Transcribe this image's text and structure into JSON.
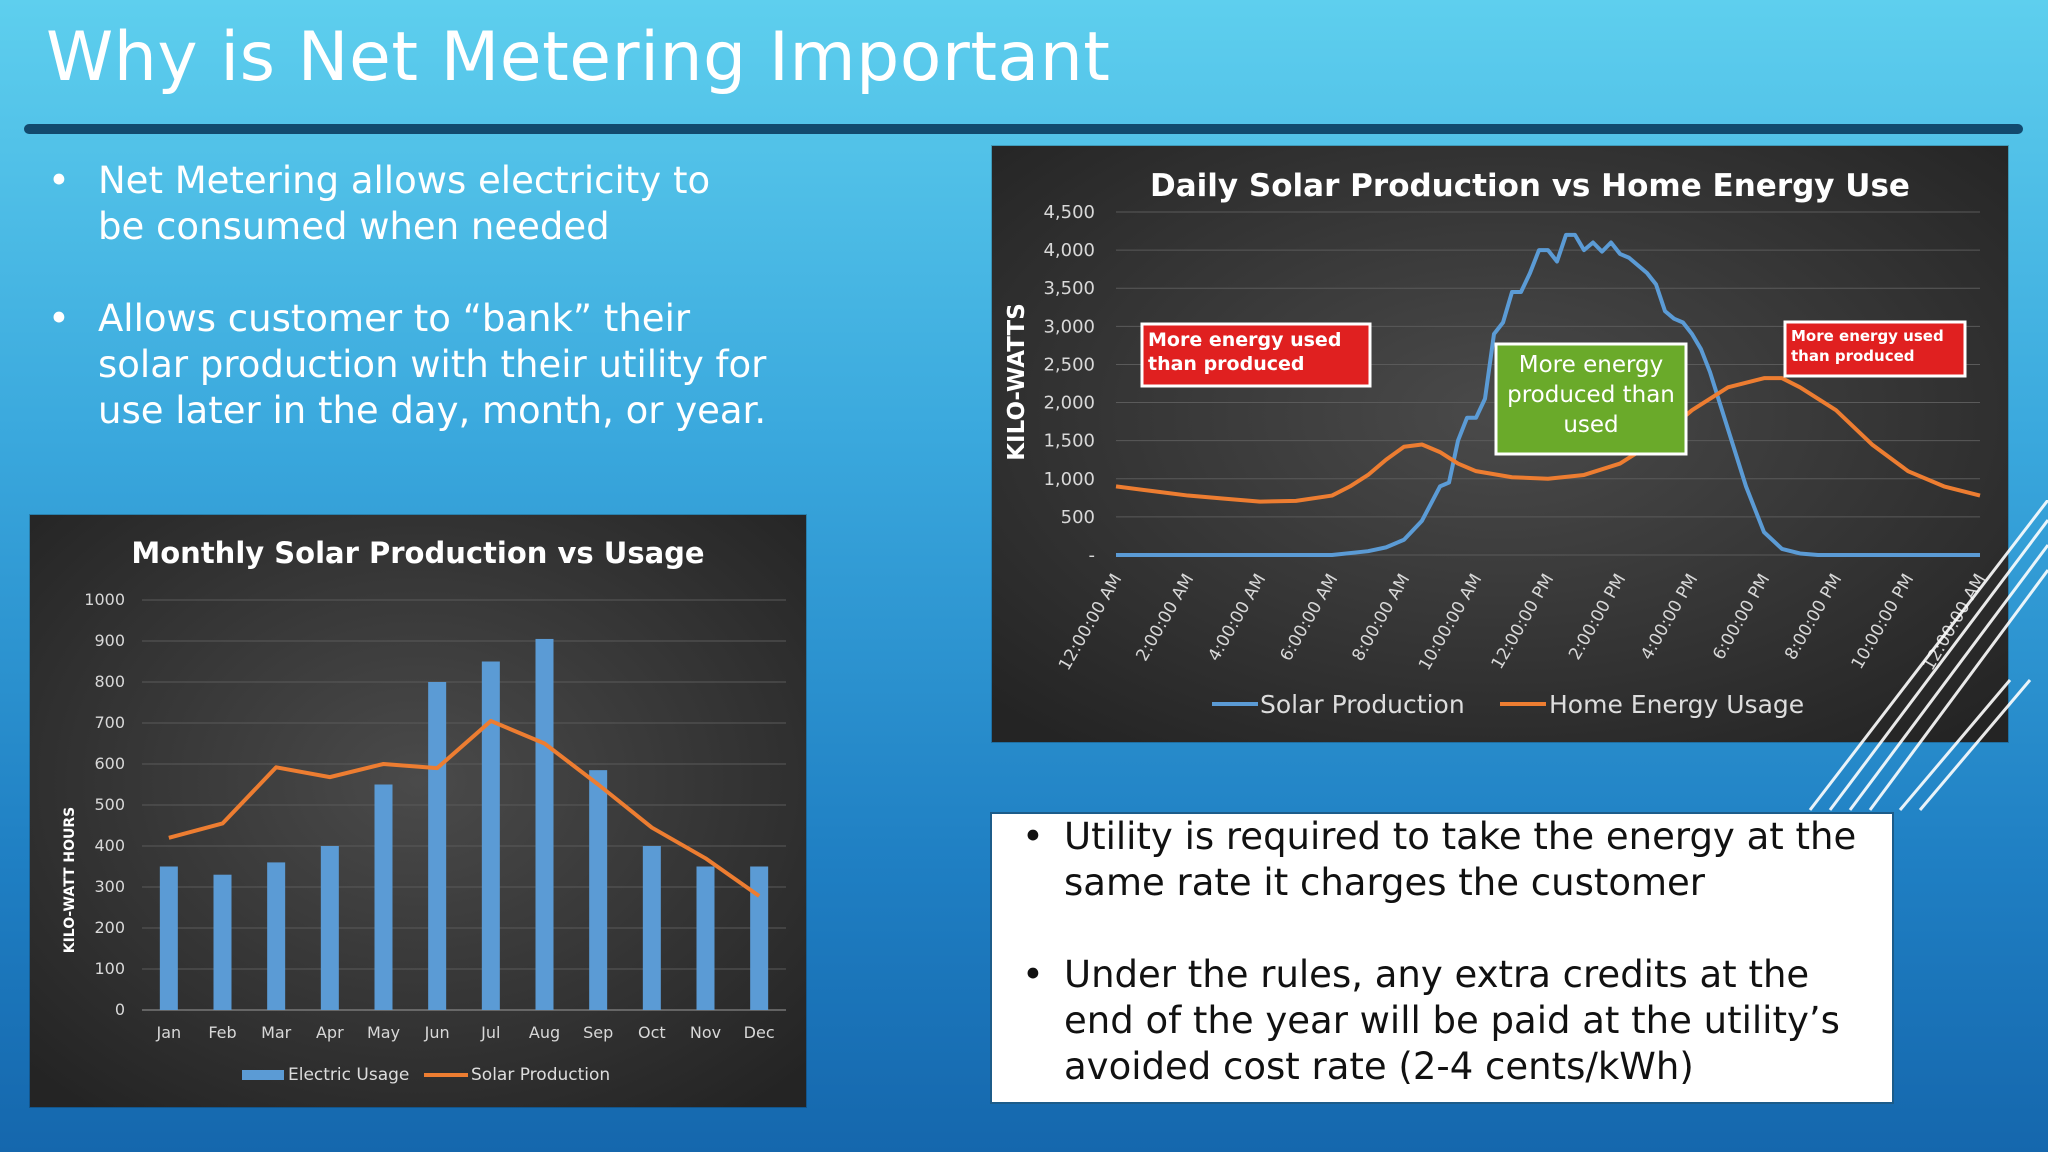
{
  "slide": {
    "title": "Why is Net Metering Important",
    "left_bullets": [
      "Net Metering allows electricity to be consumed when needed",
      "Allows customer to “bank” their solar production with their utility for use later in the day, month, or year."
    ],
    "box_bullets": [
      "Utility is required to take the energy at the same rate it charges the customer",
      "Under the rules, any extra credits at the end of the year will be paid at the utility’s avoided cost rate (2-4 cents/kWh)"
    ],
    "colors": {
      "bar_blue": "#5b9bd5",
      "line_orange": "#ed7d31",
      "annotation_red": "#e02020",
      "annotation_green": "#6aaa2a"
    }
  },
  "chart_data": [
    {
      "type": "bar",
      "title": "Monthly Solar Production vs Usage",
      "ylabel": "KILO-WATT HOURS",
      "xlabel": "",
      "ylim": [
        0,
        1000
      ],
      "yticks": [
        "0",
        "100",
        "200",
        "300",
        "400",
        "500",
        "600",
        "700",
        "800",
        "900",
        "1000"
      ],
      "categories": [
        "Jan",
        "Feb",
        "Mar",
        "Apr",
        "May",
        "Jun",
        "Jul",
        "Aug",
        "Sep",
        "Oct",
        "Nov",
        "Dec"
      ],
      "grid": true,
      "legend": "bottom",
      "series": [
        {
          "name": "Electric Usage",
          "kind": "bar",
          "color": "#5b9bd5",
          "values": [
            350,
            330,
            360,
            400,
            550,
            800,
            850,
            905,
            585,
            400,
            350,
            350
          ]
        },
        {
          "name": "Solar Production",
          "kind": "line",
          "color": "#ed7d31",
          "values": [
            420,
            455,
            592,
            568,
            600,
            590,
            705,
            650,
            550,
            445,
            370,
            278
          ]
        }
      ]
    },
    {
      "type": "line",
      "title": "Daily Solar Production vs Home Energy Use",
      "ylabel": "KILO-WATTS",
      "xlabel": "",
      "ylim": [
        0,
        4500
      ],
      "yticks": [
        "-",
        "500",
        "1,000",
        "1,500",
        "2,000",
        "2,500",
        "3,000",
        "3,500",
        "4,000",
        "4,500"
      ],
      "x_range_hours": [
        0,
        24
      ],
      "xticks": [
        "12:00:00 AM",
        "2:00:00 AM",
        "4:00:00 AM",
        "6:00:00 AM",
        "8:00:00 AM",
        "10:00:00 AM",
        "12:00:00 PM",
        "2:00:00 PM",
        "4:00:00 PM",
        "6:00:00 PM",
        "8:00:00 PM",
        "10:00:00 PM",
        "12:00:00 AM"
      ],
      "grid": true,
      "legend": "bottom",
      "series": [
        {
          "name": "Solar Production",
          "color": "#5b9bd5",
          "x": [
            0,
            6,
            7,
            7.5,
            8,
            8.5,
            9,
            9.25,
            9.5,
            9.75,
            10,
            10.25,
            10.5,
            10.75,
            11,
            11.25,
            11.5,
            11.75,
            12,
            12.25,
            12.5,
            12.75,
            13,
            13.25,
            13.5,
            13.75,
            14,
            14.25,
            14.5,
            14.75,
            15,
            15.25,
            15.5,
            15.75,
            16,
            16.25,
            16.5,
            17,
            17.5,
            18,
            18.5,
            19,
            19.5,
            20,
            24
          ],
          "y": [
            0,
            0,
            50,
            100,
            200,
            450,
            900,
            950,
            1500,
            1800,
            1800,
            2050,
            2900,
            3050,
            3450,
            3450,
            3700,
            4000,
            4000,
            3850,
            4200,
            4200,
            4000,
            4100,
            3980,
            4100,
            3950,
            3900,
            3800,
            3700,
            3550,
            3200,
            3100,
            3050,
            2900,
            2700,
            2400,
            1650,
            900,
            300,
            80,
            20,
            0,
            0,
            0
          ]
        },
        {
          "name": "Home Energy Usage",
          "color": "#ed7d31",
          "x": [
            0,
            1,
            2,
            3,
            4,
            5,
            6,
            6.5,
            7,
            7.5,
            8,
            8.5,
            9,
            9.5,
            10,
            11,
            12,
            13,
            14,
            15,
            16,
            17,
            18,
            18.5,
            19,
            20,
            21,
            22,
            23,
            24
          ],
          "y": [
            900,
            840,
            780,
            740,
            700,
            710,
            780,
            900,
            1050,
            1250,
            1420,
            1450,
            1350,
            1200,
            1100,
            1020,
            1000,
            1050,
            1200,
            1500,
            1900,
            2200,
            2320,
            2320,
            2200,
            1900,
            1450,
            1100,
            900,
            780
          ]
        }
      ],
      "annotations": [
        {
          "text": "More energy used than produced",
          "style": "red"
        },
        {
          "text": "More energy produced than used",
          "style": "green"
        },
        {
          "text": "More energy used than produced",
          "style": "red"
        }
      ]
    }
  ]
}
